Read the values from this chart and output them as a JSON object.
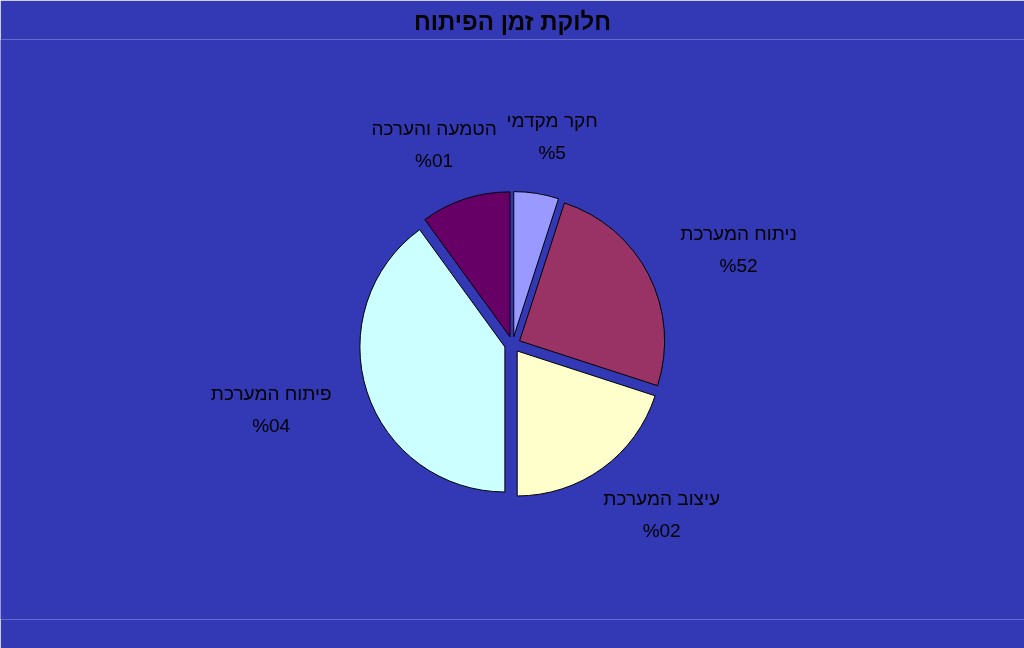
{
  "chart_data": {
    "type": "pie",
    "title": "חלוקת זמן הפיתוח",
    "categories": [
      "חקר מקדמי",
      "ניתוח המערכת",
      "עיצוב המערכת",
      "פיתוח המערכת",
      "הטמעה והערכה"
    ],
    "values": [
      5,
      25,
      20,
      40,
      10
    ],
    "colors": [
      "#9999ff",
      "#993366",
      "#ffffcc",
      "#ccffff",
      "#660066"
    ],
    "value_labels": [
      "‮5%",
      "‮25%",
      "‮20%",
      "‮40%",
      "‮10%"
    ]
  }
}
